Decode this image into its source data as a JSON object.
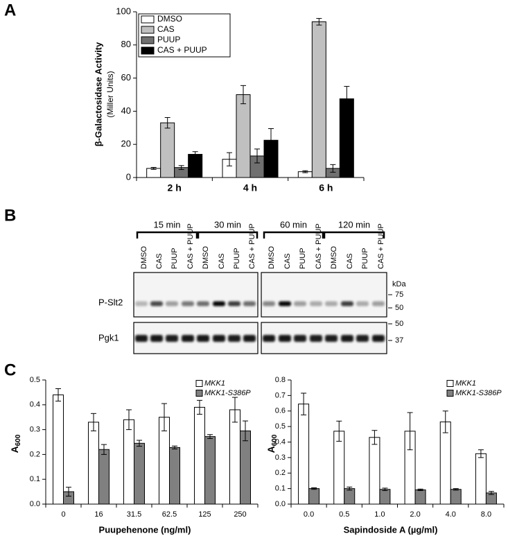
{
  "panel_labels": [
    "A",
    "B",
    "C"
  ],
  "chart_data": [
    {
      "type": "bar",
      "y_label": "β-Galactosidase Activity",
      "y_label_units": "(Miller Units)",
      "categories": [
        "2 h",
        "4 h",
        "6 h"
      ],
      "series": [
        {
          "name": "DMSO",
          "color": "#ffffff",
          "values": [
            5.5,
            11,
            3.5
          ],
          "errors": [
            0.6,
            4,
            0.6
          ]
        },
        {
          "name": "CAS",
          "color": "#c0c0c0",
          "values": [
            33,
            50,
            94
          ],
          "errors": [
            3.2,
            5.5,
            2
          ]
        },
        {
          "name": "PUUP",
          "color": "#707070",
          "values": [
            6,
            13,
            5.5
          ],
          "errors": [
            1.2,
            4.2,
            2.3
          ]
        },
        {
          "name": "CAS + PUUP",
          "color": "#000000",
          "values": [
            14,
            22.5,
            47.5
          ],
          "errors": [
            1.6,
            7,
            7.5
          ]
        }
      ],
      "ylim": [
        0,
        100
      ],
      "yticks": [
        0,
        20,
        40,
        60,
        80,
        100
      ],
      "legend": "upper left"
    },
    {
      "type": "bar",
      "y_label": "A",
      "y_label_subscript": "600",
      "x_label": "Puupehenone (ng/ml)",
      "categories": [
        "0",
        "16",
        "31.5",
        "62.5",
        "125",
        "250"
      ],
      "series": [
        {
          "name": "MKK1",
          "color": "#ffffff",
          "values": [
            0.44,
            0.33,
            0.34,
            0.35,
            0.39,
            0.38
          ],
          "errors": [
            0.025,
            0.035,
            0.04,
            0.055,
            0.028,
            0.05
          ]
        },
        {
          "name": "MKK1-S386P",
          "color": "#808080",
          "values": [
            0.05,
            0.22,
            0.245,
            0.228,
            0.272,
            0.295
          ],
          "errors": [
            0.018,
            0.02,
            0.012,
            0.006,
            0.008,
            0.04
          ]
        }
      ],
      "ylim": [
        0,
        0.5
      ],
      "yticks": [
        {
          "value": 0,
          "label": "0.0"
        },
        0.1,
        0.2,
        0.3,
        0.4,
        0.5
      ],
      "legend": "upper right"
    },
    {
      "type": "bar",
      "y_label": "A",
      "y_label_subscript": "600",
      "x_label": "Sapindoside A (µg/ml)",
      "categories": [
        "0.0",
        "0.5",
        "1.0",
        "2.0",
        "4.0",
        "8.0"
      ],
      "series": [
        {
          "name": "MKK1",
          "color": "#ffffff",
          "values": [
            0.645,
            0.47,
            0.43,
            0.47,
            0.53,
            0.325
          ],
          "errors": [
            0.07,
            0.065,
            0.045,
            0.12,
            0.07,
            0.025
          ]
        },
        {
          "name": "MKK1-S386P",
          "color": "#808080",
          "values": [
            0.1,
            0.1,
            0.095,
            0.092,
            0.095,
            0.072
          ],
          "errors": [
            0.005,
            0.01,
            0.008,
            0.005,
            0.005,
            0.01
          ]
        }
      ],
      "ylim": [
        0,
        0.8
      ],
      "yticks": [
        {
          "value": 0,
          "label": "0.0"
        },
        0.1,
        0.2,
        0.3,
        0.4,
        0.5,
        0.6,
        0.7,
        0.8
      ],
      "legend": "upper right"
    }
  ],
  "blot": {
    "time_points": [
      {
        "label": "15 min",
        "lanes": [
          "DMSO",
          "CAS",
          "PUUP",
          "CAS + PUUP"
        ]
      },
      {
        "label": "30 min",
        "lanes": [
          "DMSO",
          "CAS",
          "PUUP",
          "CAS + PUUP"
        ]
      },
      {
        "label": "60 min",
        "lanes": [
          "DMSO",
          "CAS",
          "PUUP",
          "CAS + PUUP"
        ]
      },
      {
        "label": "120 min",
        "lanes": [
          "DMSO",
          "CAS",
          "PUUP",
          "CAS + PUUP"
        ]
      }
    ],
    "kda_label": "kDa",
    "rows": [
      {
        "label": "P-Slt2",
        "markers": [
          "75",
          "50"
        ]
      },
      {
        "label": "Pgk1",
        "markers": [
          "50",
          "37"
        ]
      }
    ]
  }
}
